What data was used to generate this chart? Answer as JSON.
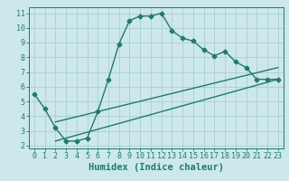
{
  "main_x": [
    0,
    1,
    2,
    3,
    4,
    5,
    6,
    7,
    8,
    9,
    10,
    11,
    12,
    13,
    14,
    15,
    16,
    17,
    18,
    19,
    20,
    21,
    22,
    23
  ],
  "main_y": [
    5.5,
    4.5,
    3.2,
    2.3,
    2.3,
    2.5,
    4.3,
    6.5,
    8.9,
    10.5,
    10.8,
    10.8,
    11.0,
    9.8,
    9.3,
    9.1,
    8.5,
    8.1,
    8.4,
    7.7,
    7.3,
    6.5,
    6.5,
    6.5
  ],
  "line1_x": [
    2,
    23
  ],
  "line1_y": [
    3.6,
    7.3
  ],
  "line2_x": [
    2,
    23
  ],
  "line2_y": [
    2.3,
    6.5
  ],
  "color": "#217a6e",
  "bg_color": "#cce8ec",
  "grid_color": "#aacdd3",
  "xlabel": "Humidex (Indice chaleur)",
  "xlim_min": -0.5,
  "xlim_max": 23.5,
  "ylim_min": 1.8,
  "ylim_max": 11.4,
  "xticks": [
    0,
    1,
    2,
    3,
    4,
    5,
    6,
    7,
    8,
    9,
    10,
    11,
    12,
    13,
    14,
    15,
    16,
    17,
    18,
    19,
    20,
    21,
    22,
    23
  ],
  "yticks": [
    2,
    3,
    4,
    5,
    6,
    7,
    8,
    9,
    10,
    11
  ],
  "marker": "D",
  "markersize": 2.5,
  "linewidth": 1.0,
  "xlabel_fontsize": 7.5,
  "tick_fontsize": 6.0
}
